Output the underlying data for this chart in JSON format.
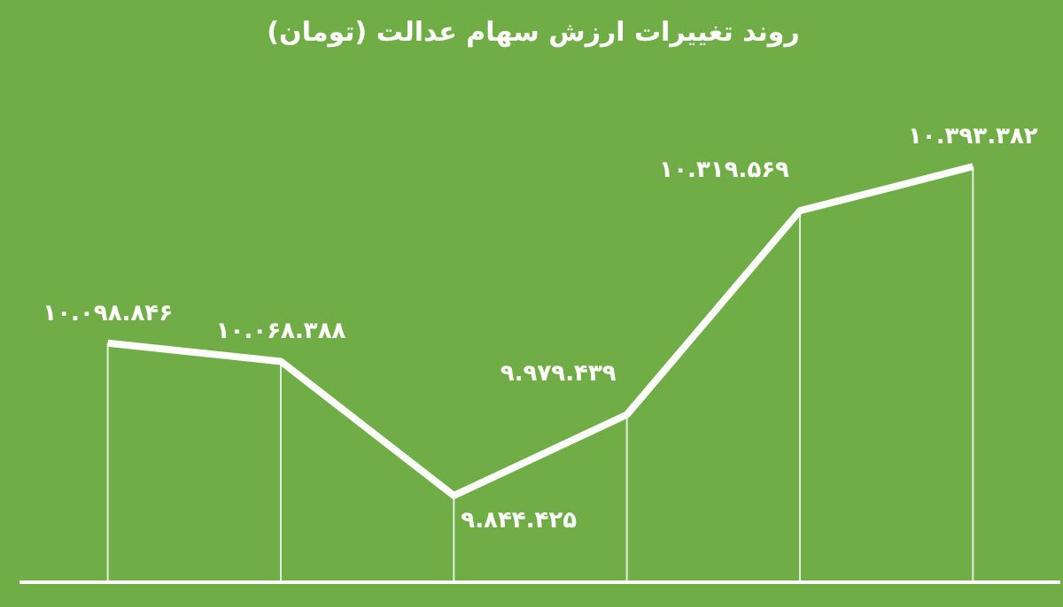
{
  "chart_data": {
    "type": "line",
    "title": "روند تغییرات ارزش سهام عدالت (تومان)",
    "categories": [
      null,
      null,
      null,
      null,
      null,
      null
    ],
    "series": [
      {
        "color": "#ffffff",
        "values": [
          10098846,
          10068388,
          9844425,
          9979439,
          10319569,
          10393382
        ],
        "value_labels": [
          "۱۰.۰۹۸.۸۴۶",
          "۱۰.۰۶۸.۳۸۸",
          "۹.۸۴۴.۴۲۵",
          "۹.۹۷۹.۴۳۹",
          "۱۰.۳۱۹.۵۶۹",
          "۱۰.۳۹۳.۳۸۲"
        ]
      }
    ],
    "tick_labels": false,
    "grid": "x",
    "legend": false,
    "marker": "none",
    "line_style": "solid"
  }
}
